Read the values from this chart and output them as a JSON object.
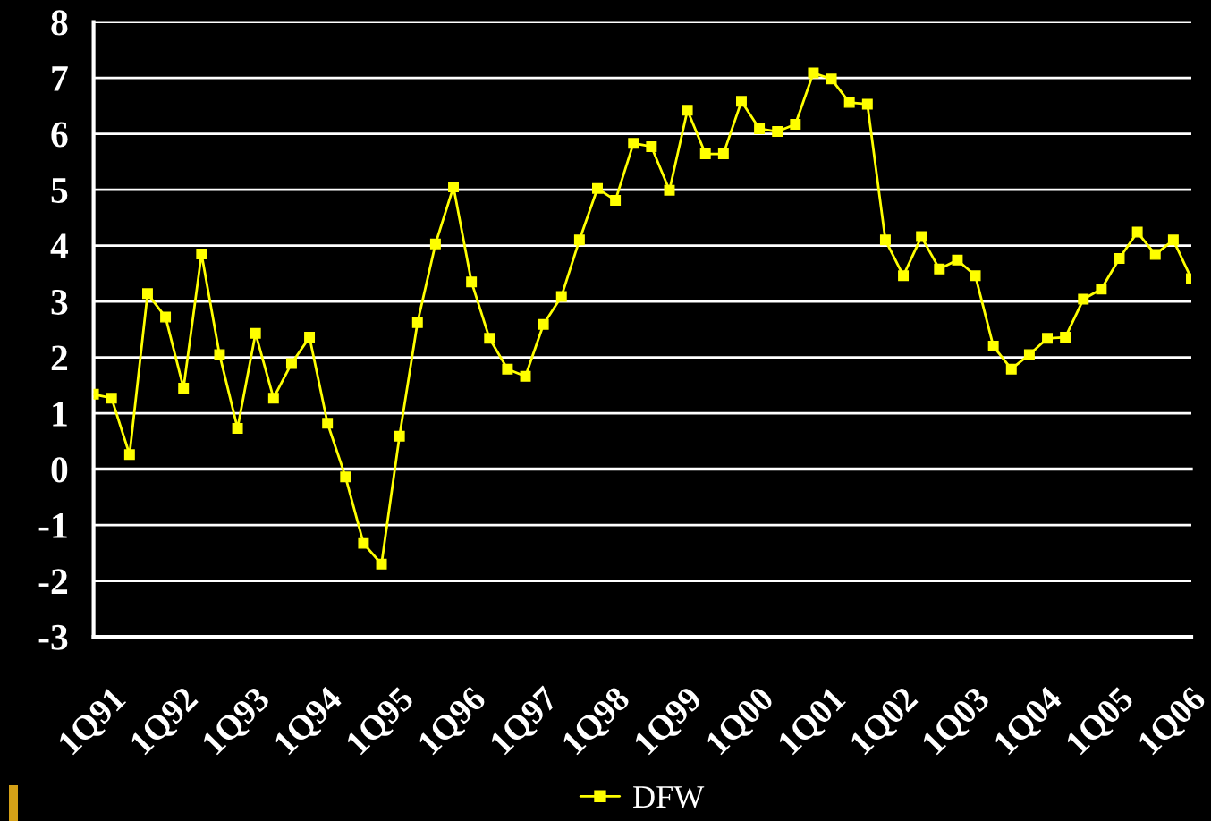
{
  "chart_data": {
    "type": "line",
    "categories": [
      "1Q91",
      null,
      null,
      null,
      "1Q92",
      null,
      null,
      null,
      "1Q93",
      null,
      null,
      null,
      "1Q94",
      null,
      null,
      null,
      "1Q95",
      null,
      null,
      null,
      "1Q96",
      null,
      null,
      null,
      "1Q97",
      null,
      null,
      null,
      "1Q98",
      null,
      null,
      null,
      "1Q99",
      null,
      null,
      null,
      "1Q00",
      null,
      null,
      null,
      "1Q01",
      null,
      null,
      null,
      "1Q02",
      null,
      null,
      null,
      "1Q03",
      null,
      null,
      null,
      "1Q04",
      null,
      null,
      null,
      "1Q05",
      null,
      null,
      null,
      "1Q06",
      null
    ],
    "series": [
      {
        "name": "DFW",
        "color": "#ffff00",
        "values": [
          1.34,
          1.27,
          0.26,
          3.14,
          2.72,
          1.45,
          3.85,
          2.05,
          0.73,
          2.43,
          1.27,
          1.89,
          2.36,
          0.82,
          -0.14,
          -1.33,
          -1.7,
          0.59,
          2.62,
          4.03,
          5.05,
          3.35,
          2.34,
          1.79,
          1.66,
          2.59,
          3.09,
          4.1,
          5.02,
          4.81,
          5.83,
          5.77,
          4.99,
          6.42,
          5.64,
          5.64,
          6.58,
          6.09,
          6.04,
          6.17,
          7.09,
          6.98,
          6.56,
          6.53,
          4.1,
          3.46,
          4.16,
          3.58,
          3.74,
          3.46,
          2.2,
          1.79,
          2.05,
          2.34,
          2.36,
          3.04,
          3.22,
          3.77,
          4.24,
          3.84,
          4.1,
          3.41
        ]
      }
    ],
    "ylim": [
      -3,
      8
    ],
    "yticks": [
      -3,
      -2,
      -1,
      0,
      1,
      2,
      3,
      4,
      5,
      6,
      7,
      8
    ],
    "grid": "y",
    "legend": "bottom",
    "marker": "square",
    "line_style": "solid"
  }
}
